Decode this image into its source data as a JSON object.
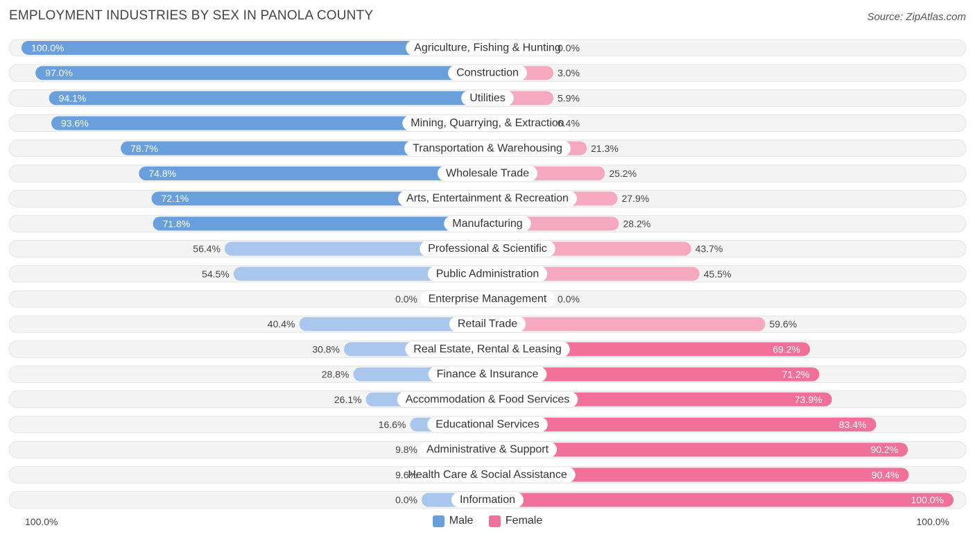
{
  "title": "EMPLOYMENT INDUSTRIES BY SEX IN PANOLA COUNTY",
  "source": "Source: ZipAtlas.com",
  "colors": {
    "male_strong": "#6a9fdd",
    "male_light": "#a9c6ec",
    "female_strong": "#f07099",
    "female_light": "#f5a9c1",
    "row_bg": "#f2f2f2"
  },
  "axis": {
    "left_label": "100.0%",
    "right_label": "100.0%"
  },
  "legend": {
    "male": "Male",
    "female": "Female"
  },
  "chart_data": {
    "type": "bar",
    "orientation": "horizontal-diverging",
    "title": "EMPLOYMENT INDUSTRIES BY SEX IN PANOLA COUNTY",
    "xlim": [
      -100,
      100
    ],
    "categories": [
      "Agriculture, Fishing & Hunting",
      "Construction",
      "Utilities",
      "Mining, Quarrying, & Extraction",
      "Transportation & Warehousing",
      "Wholesale Trade",
      "Arts, Entertainment & Recreation",
      "Manufacturing",
      "Professional & Scientific",
      "Public Administration",
      "Enterprise Management",
      "Retail Trade",
      "Real Estate, Rental & Leasing",
      "Finance & Insurance",
      "Accommodation & Food Services",
      "Educational Services",
      "Administrative & Support",
      "Health Care & Social Assistance",
      "Information"
    ],
    "series": [
      {
        "name": "Male",
        "values": [
          100.0,
          97.0,
          94.1,
          93.6,
          78.7,
          74.8,
          72.1,
          71.8,
          56.4,
          54.5,
          0.0,
          40.4,
          30.8,
          28.8,
          26.1,
          16.6,
          9.8,
          9.6,
          0.0
        ]
      },
      {
        "name": "Female",
        "values": [
          0.0,
          3.0,
          5.9,
          6.4,
          21.3,
          25.2,
          27.9,
          28.2,
          43.7,
          45.5,
          0.0,
          59.6,
          69.2,
          71.2,
          73.9,
          83.4,
          90.2,
          90.4,
          100.0
        ]
      }
    ],
    "value_labels": {
      "male": [
        "100.0%",
        "97.0%",
        "94.1%",
        "93.6%",
        "78.7%",
        "74.8%",
        "72.1%",
        "71.8%",
        "56.4%",
        "54.5%",
        "0.0%",
        "40.4%",
        "30.8%",
        "28.8%",
        "26.1%",
        "16.6%",
        "9.8%",
        "9.6%",
        "0.0%"
      ],
      "female": [
        "0.0%",
        "3.0%",
        "5.9%",
        "6.4%",
        "21.3%",
        "25.2%",
        "27.9%",
        "28.2%",
        "43.7%",
        "45.5%",
        "0.0%",
        "59.6%",
        "69.2%",
        "71.2%",
        "73.9%",
        "83.4%",
        "90.2%",
        "90.4%",
        "100.0%"
      ]
    },
    "legend_position": "bottom-center"
  }
}
